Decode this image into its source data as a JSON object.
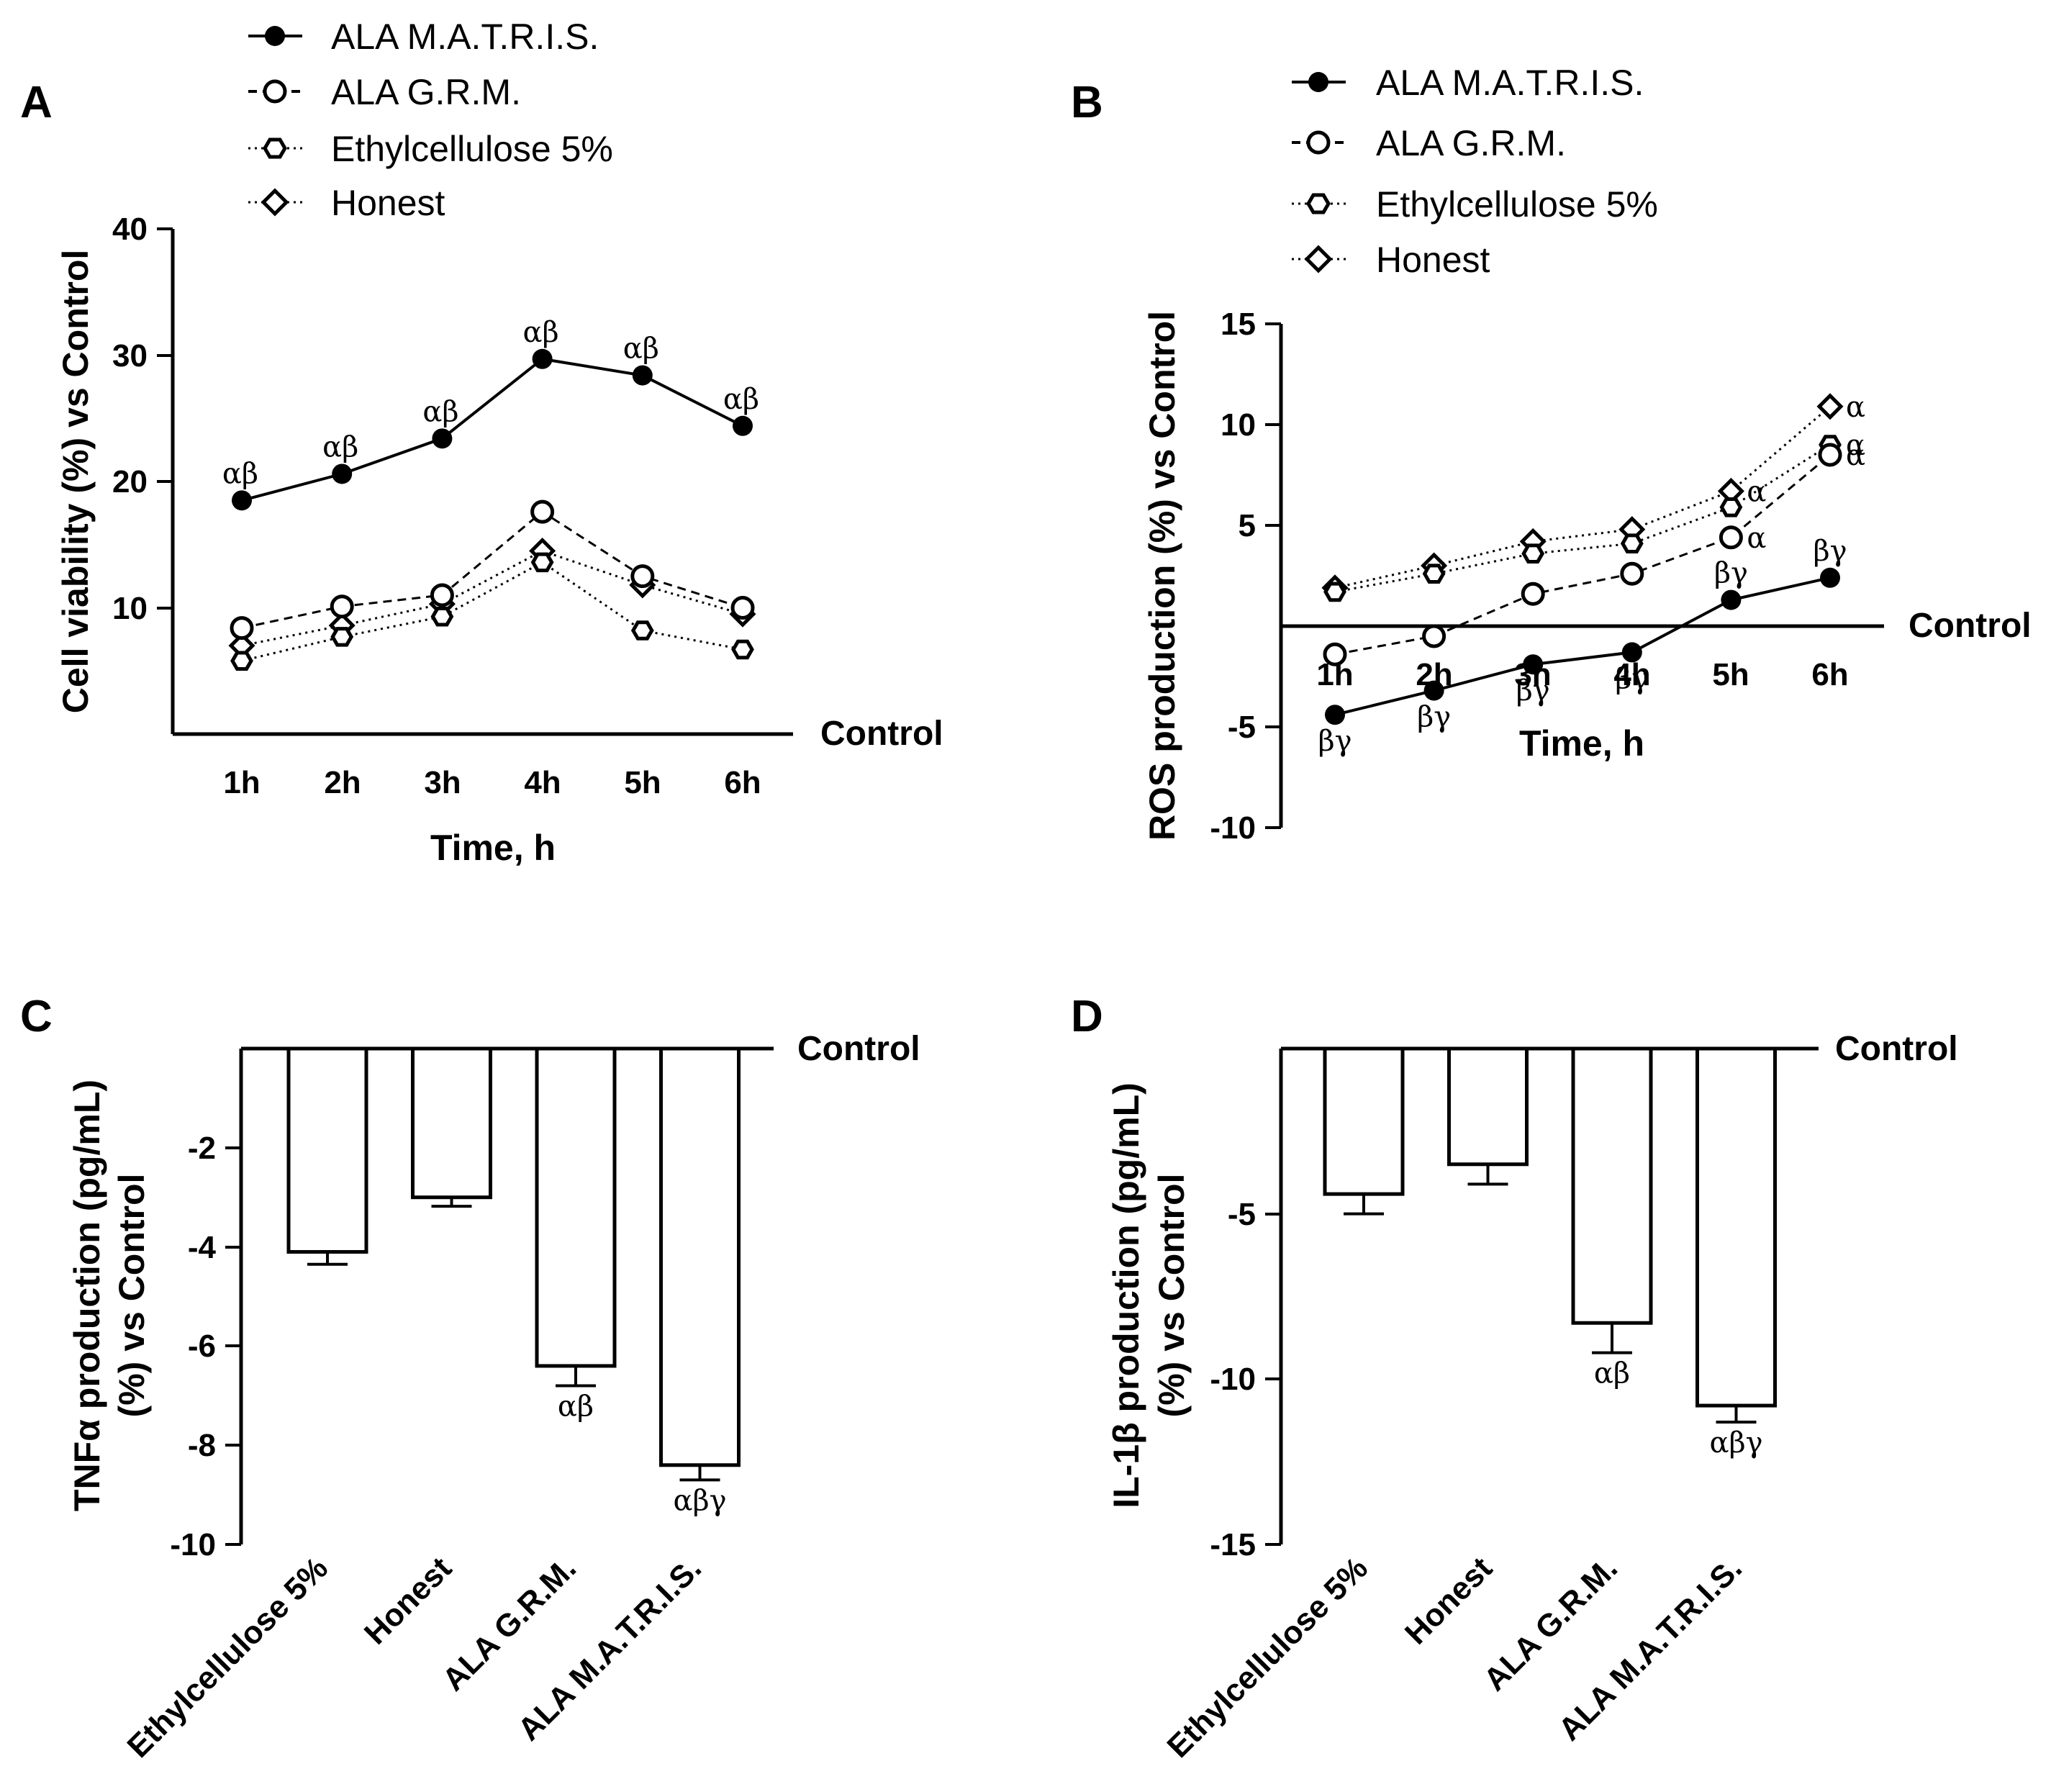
{
  "colors": {
    "ink": "#000000",
    "background": "#ffffff",
    "hollow_fill": "#ffffff"
  },
  "chart_data": [
    {
      "panel": "A",
      "type": "line",
      "xlabel": "Time, h",
      "ylabel": "Cell viability (%) vs Control",
      "categories": [
        "1h",
        "2h",
        "3h",
        "4h",
        "5h",
        "6h"
      ],
      "ylim": [
        0,
        40
      ],
      "yticks": [
        "10",
        "20",
        "30",
        "40"
      ],
      "baseline_label": "Control",
      "legend_position": "top",
      "grid": false,
      "series": [
        {
          "name": "ALA M.A.T.R.I.S.",
          "marker": "filled-circle",
          "line": "solid",
          "values": [
            18.5,
            20.6,
            23.4,
            29.7,
            28.4,
            24.4
          ],
          "annotations": [
            "αβ",
            "αβ",
            "αβ",
            "αβ",
            "αβ",
            "αβ"
          ]
        },
        {
          "name": "ALA G.R.M.",
          "marker": "open-circle",
          "line": "dashed",
          "values": [
            8.4,
            10.1,
            11.0,
            17.6,
            12.5,
            10.0
          ]
        },
        {
          "name": "Ethylcellulose 5%",
          "marker": "open-hexagon",
          "line": "dotted",
          "values": [
            5.8,
            7.7,
            9.3,
            13.6,
            8.2,
            6.7
          ]
        },
        {
          "name": "Honest",
          "marker": "open-diamond",
          "line": "dotted",
          "values": [
            7.0,
            8.6,
            10.3,
            14.5,
            11.8,
            9.5
          ]
        }
      ]
    },
    {
      "panel": "B",
      "type": "line",
      "xlabel": "Time, h",
      "ylabel": "ROS production (%) vs Control",
      "categories": [
        "1h",
        "2h",
        "3h",
        "4h",
        "5h",
        "6h"
      ],
      "ylim": [
        -10,
        15
      ],
      "yticks": [
        "-10",
        "-5",
        "5",
        "10",
        "15"
      ],
      "baseline_label": "Control",
      "legend_position": "top",
      "grid": false,
      "series": [
        {
          "name": "ALA M.A.T.R.I.S.",
          "marker": "filled-circle",
          "line": "solid",
          "values": [
            -4.4,
            -3.2,
            -1.9,
            -1.3,
            1.3,
            2.4
          ],
          "annotations": [
            "βγ",
            "βγ",
            "βγ",
            "βγ",
            "βγ",
            "βγ"
          ]
        },
        {
          "name": "ALA G.R.M.",
          "marker": "open-circle",
          "line": "dashed",
          "values": [
            -1.4,
            -0.5,
            1.6,
            2.6,
            4.4,
            8.5
          ],
          "annotations": [
            "",
            "",
            "",
            "",
            "α",
            "α"
          ]
        },
        {
          "name": "Ethylcellulose 5%",
          "marker": "open-hexagon",
          "line": "dotted",
          "values": [
            1.7,
            2.6,
            3.6,
            4.1,
            5.9,
            9.0
          ],
          "annotations": [
            "",
            "",
            "",
            "",
            "",
            "α"
          ]
        },
        {
          "name": "Honest",
          "marker": "open-diamond",
          "line": "dotted",
          "values": [
            1.9,
            3.0,
            4.2,
            4.8,
            6.7,
            10.9
          ],
          "annotations": [
            "",
            "",
            "",
            "",
            "α",
            "α"
          ]
        }
      ]
    },
    {
      "panel": "C",
      "type": "bar",
      "ylabel": "TNFα production (pg/mL) (%) vs Control",
      "ylabel_lines": [
        "TNFα production (pg/mL)",
        "(%) vs Control"
      ],
      "categories": [
        "Ethylcellulose 5%",
        "Honest",
        "ALA G.R.M.",
        "ALA M.A.T.R.I.S."
      ],
      "values": [
        -4.1,
        -3.0,
        -6.4,
        -8.4
      ],
      "errors": [
        0.25,
        0.18,
        0.4,
        0.3
      ],
      "annotations": [
        "",
        "",
        "αβ",
        "αβγ"
      ],
      "ylim": [
        -10,
        0
      ],
      "yticks": [
        "-2",
        "-4",
        "-6",
        "-8",
        "-10"
      ],
      "baseline_label": "Control",
      "grid": false
    },
    {
      "panel": "D",
      "type": "bar",
      "ylabel": "IL-1β production (pg/mL) (%) vs Control",
      "ylabel_lines": [
        "IL-1β production (pg/mL)",
        "(%) vs Control"
      ],
      "categories": [
        "Ethylcellulose 5%",
        "Honest",
        "ALA G.R.M.",
        "ALA M.A.T.R.I.S."
      ],
      "values": [
        -4.4,
        -3.5,
        -8.3,
        -10.8
      ],
      "errors": [
        0.6,
        0.6,
        0.9,
        0.5
      ],
      "annotations": [
        "",
        "",
        "αβ",
        "αβγ"
      ],
      "ylim": [
        -15,
        0
      ],
      "yticks": [
        "-5",
        "-10",
        "-15"
      ],
      "baseline_label": "Control",
      "grid": false
    }
  ]
}
